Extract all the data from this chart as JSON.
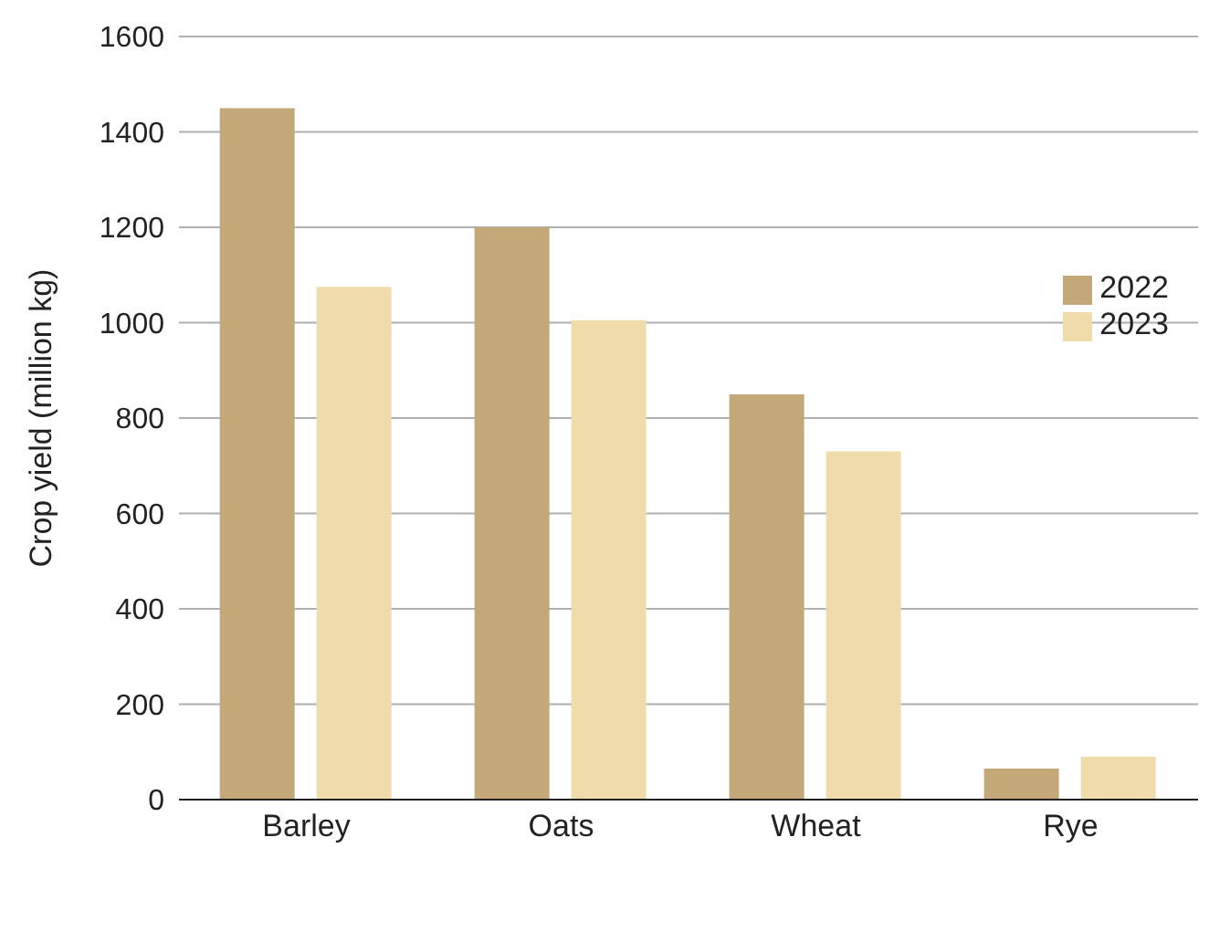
{
  "chart_data": {
    "type": "bar",
    "ylabel": "Crop yield (million kg)",
    "categories": [
      "Barley",
      "Oats",
      "Wheat",
      "Rye"
    ],
    "series": [
      {
        "name": "2022",
        "color": "#c4a878",
        "values": [
          1450,
          1200,
          850,
          65
        ]
      },
      {
        "name": "2023",
        "color": "#f0dcaa",
        "values": [
          1075,
          1005,
          730,
          90
        ]
      }
    ],
    "ylim": [
      0,
      1600
    ],
    "yticks": [
      0,
      200,
      400,
      600,
      800,
      1000,
      1200,
      1400,
      1600
    ],
    "grid": "y",
    "legend": "right"
  }
}
